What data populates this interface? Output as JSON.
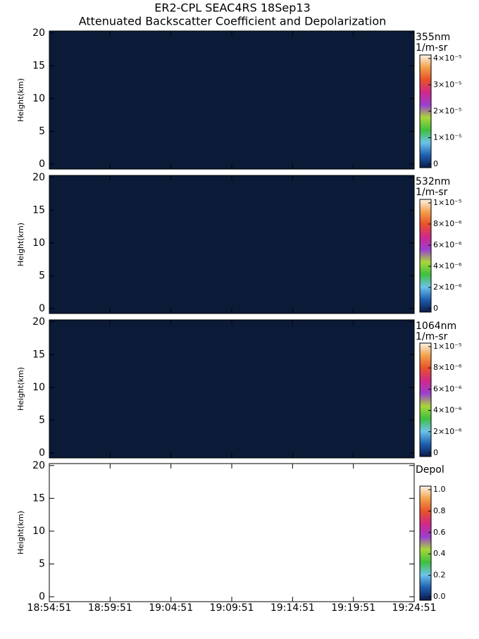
{
  "title": [
    "ER2-CPL SEAC4RS 18Sep13",
    "Attenuated Backscatter Coefficient and Depolarization"
  ],
  "chart_data": [
    {
      "type": "heatmap",
      "ylabel": "Height(km)",
      "ylim": [
        -0.75,
        20.3
      ],
      "yticks": [
        0,
        5,
        10,
        15,
        20
      ],
      "colorbar_label": [
        "355nm",
        "1/m-sr"
      ],
      "clim": [
        0,
        4e-05
      ],
      "cticks": [
        0,
        {
          "value": 1e-05,
          "label": "1×10⁻⁵"
        },
        {
          "value": 2e-05,
          "label": "2×10⁻⁵"
        },
        {
          "value": 3e-05,
          "label": "3×10⁻⁵"
        },
        {
          "value": 4e-05,
          "label": "4×10⁻⁵"
        }
      ],
      "background": "#0b1a36",
      "colormap": [
        "#0b1a4a",
        "#1f5fb0",
        "#6cc3ea",
        "#3fbf3f",
        "#a9d63a",
        "#9a3fd0",
        "#d0288a",
        "#e8502a",
        "#f2a04a",
        "#fdf4e8"
      ]
    },
    {
      "type": "heatmap",
      "ylabel": "Height(km)",
      "ylim": [
        -0.75,
        20.3
      ],
      "yticks": [
        0,
        5,
        10,
        15,
        20
      ],
      "colorbar_label": [
        "532nm",
        "1/m-sr"
      ],
      "clim": [
        0,
        1e-05
      ],
      "cticks": [
        0,
        {
          "value": 2e-06,
          "label": "2×10⁻⁶"
        },
        {
          "value": 4e-06,
          "label": "4×10⁻⁶"
        },
        {
          "value": 6e-06,
          "label": "6×10⁻⁶"
        },
        {
          "value": 8e-06,
          "label": "8×10⁻⁶"
        },
        {
          "value": 1e-05,
          "label": "1×10⁻⁵"
        }
      ],
      "background": "#0b1a36",
      "colormap": [
        "#0b1a4a",
        "#1f5fb0",
        "#6cc3ea",
        "#3fbf3f",
        "#a9d63a",
        "#9a3fd0",
        "#d0288a",
        "#e8502a",
        "#f2a04a",
        "#fdf4e8"
      ]
    },
    {
      "type": "heatmap",
      "ylabel": "Height(km)",
      "ylim": [
        -0.75,
        20.3
      ],
      "yticks": [
        0,
        5,
        10,
        15,
        20
      ],
      "colorbar_label": [
        "1064nm",
        "1/m-sr"
      ],
      "clim": [
        0,
        1e-05
      ],
      "cticks": [
        0,
        {
          "value": 2e-06,
          "label": "2×10⁻⁶"
        },
        {
          "value": 4e-06,
          "label": "4×10⁻⁶"
        },
        {
          "value": 6e-06,
          "label": "6×10⁻⁶"
        },
        {
          "value": 8e-06,
          "label": "8×10⁻⁶"
        },
        {
          "value": 1e-05,
          "label": "1×10⁻⁵"
        }
      ],
      "background": "#0b1a36",
      "colormap": [
        "#0b1a4a",
        "#1f5fb0",
        "#6cc3ea",
        "#3fbf3f",
        "#a9d63a",
        "#9a3fd0",
        "#d0288a",
        "#e8502a",
        "#f2a04a",
        "#fdf4e8"
      ]
    },
    {
      "type": "heatmap",
      "ylabel": "Height(km)",
      "ylim": [
        -0.75,
        20.3
      ],
      "yticks": [
        0,
        5,
        10,
        15,
        20
      ],
      "colorbar_label": [
        "Depol"
      ],
      "clim": [
        0,
        1
      ],
      "cticks": [
        {
          "value": 0,
          "label": "0.0"
        },
        0.2,
        0.4,
        0.6,
        0.8,
        {
          "value": 1,
          "label": "1.0"
        }
      ],
      "background": "#ffffff",
      "colormap": [
        "#0b1a4a",
        "#1f5fb0",
        "#6cc3ea",
        "#3fbf3f",
        "#a9d63a",
        "#9a3fd0",
        "#d0288a",
        "#e8502a",
        "#f2a04a",
        "#fdf4e8"
      ],
      "xticks": [
        "18:54:51",
        "18:59:51",
        "19:04:51",
        "19:09:51",
        "19:14:51",
        "19:19:51",
        "19:24:51"
      ]
    }
  ]
}
